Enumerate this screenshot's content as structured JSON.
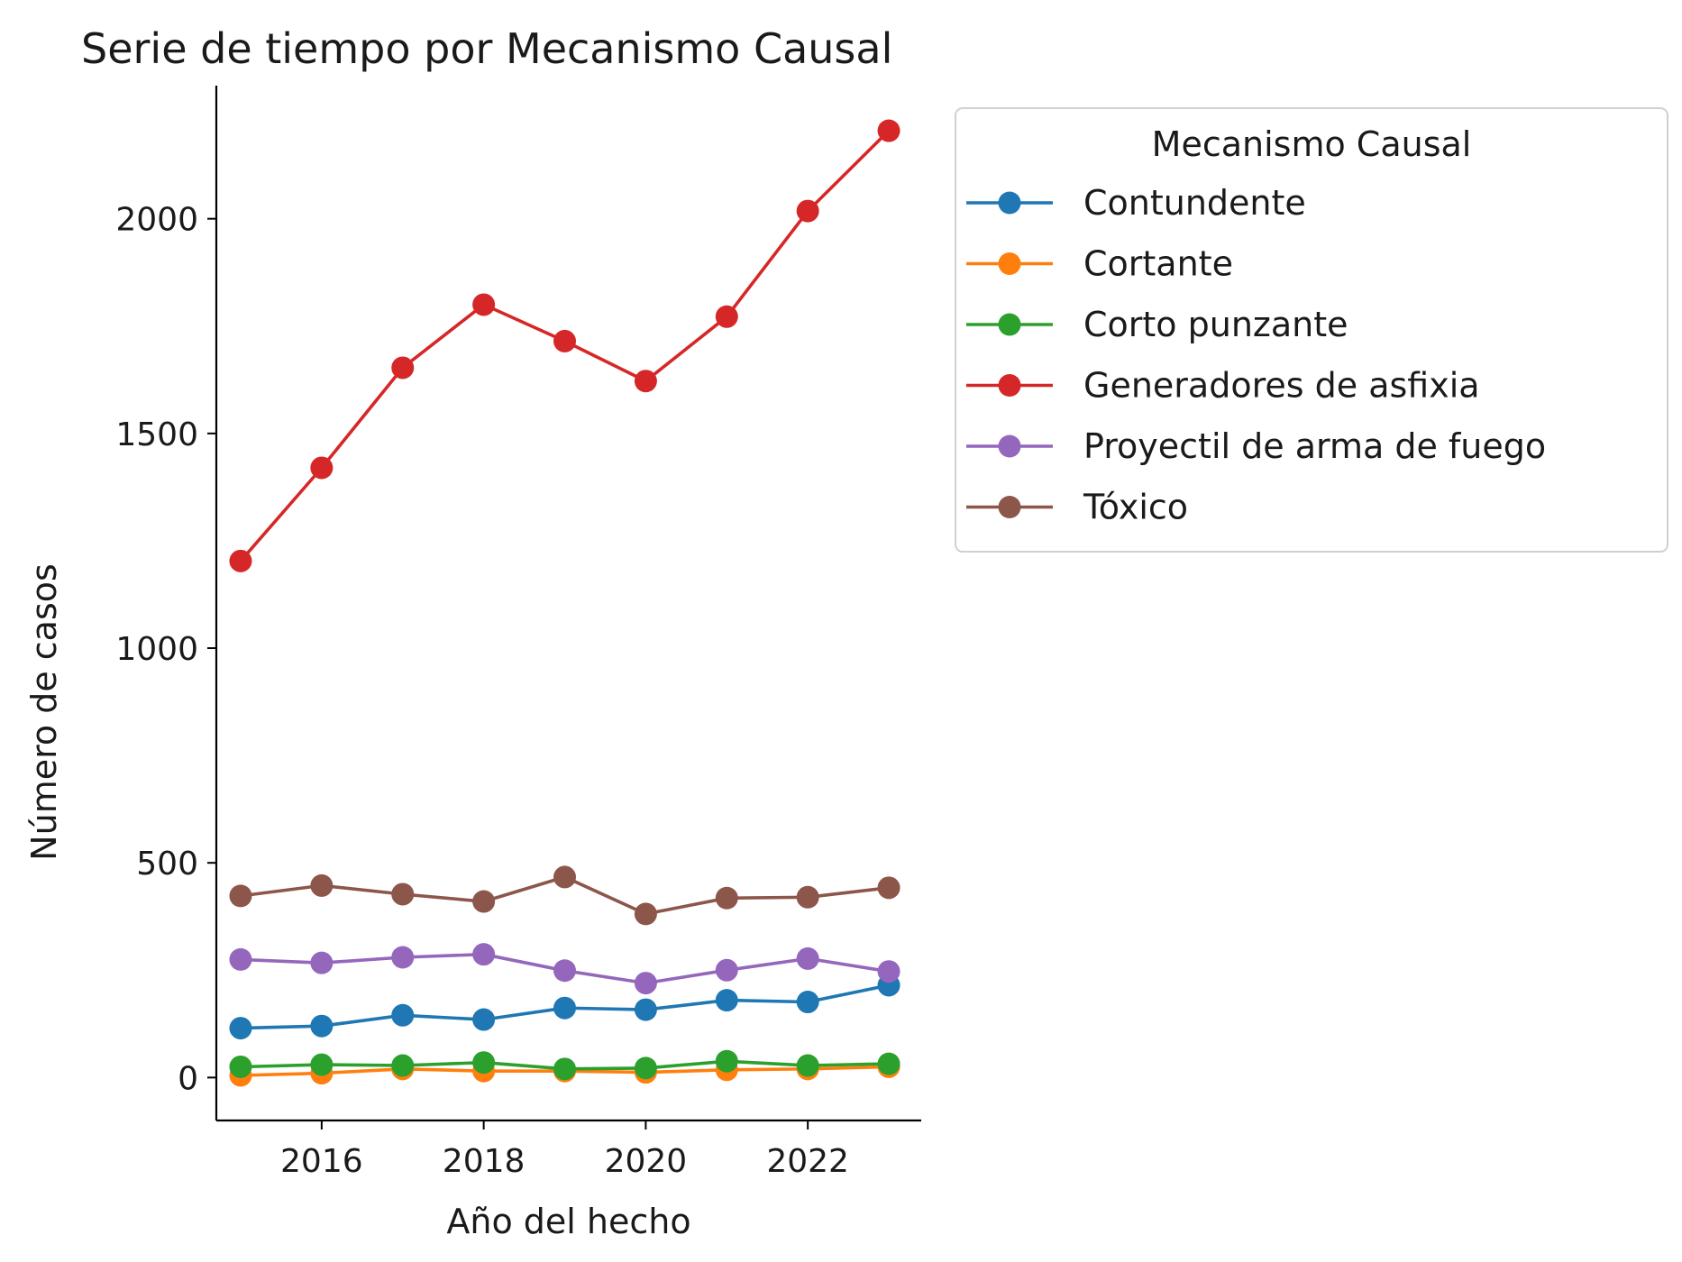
{
  "chart_data": {
    "type": "line",
    "title": "Serie de tiempo por Mecanismo Causal",
    "xlabel": "Año del hecho",
    "ylabel": "Número de casos",
    "x": [
      2015,
      2016,
      2017,
      2018,
      2019,
      2020,
      2021,
      2022,
      2023
    ],
    "xlim": [
      2014.7,
      2023.4
    ],
    "ylim": [
      -100,
      2310
    ],
    "xticks": [
      2016,
      2018,
      2020,
      2022
    ],
    "yticks": [
      0,
      500,
      1000,
      1500,
      2000
    ],
    "grid": false,
    "legend": {
      "title": "Mecanismo Causal",
      "placement": "outside-top-right"
    },
    "series": [
      {
        "name": "Contundente",
        "color": "#1f77b4",
        "values": [
          115,
          120,
          145,
          135,
          162,
          158,
          180,
          176,
          215
        ]
      },
      {
        "name": "Cortante",
        "color": "#ff7f0e",
        "values": [
          5,
          10,
          20,
          15,
          15,
          12,
          18,
          20,
          25
        ]
      },
      {
        "name": "Corto punzante",
        "color": "#2ca02c",
        "values": [
          25,
          30,
          28,
          35,
          20,
          22,
          38,
          28,
          32
        ]
      },
      {
        "name": "Generadores de asfixia",
        "color": "#d62728",
        "values": [
          1203,
          1420,
          1653,
          1800,
          1715,
          1622,
          1772,
          2018,
          2205
        ]
      },
      {
        "name": "Proyectil de arma de fuego",
        "color": "#9467bd",
        "values": [
          275,
          267,
          280,
          287,
          249,
          220,
          250,
          277,
          247
        ]
      },
      {
        "name": "Tóxico",
        "color": "#8c564b",
        "values": [
          423,
          447,
          427,
          410,
          467,
          381,
          418,
          420,
          442
        ]
      }
    ]
  }
}
